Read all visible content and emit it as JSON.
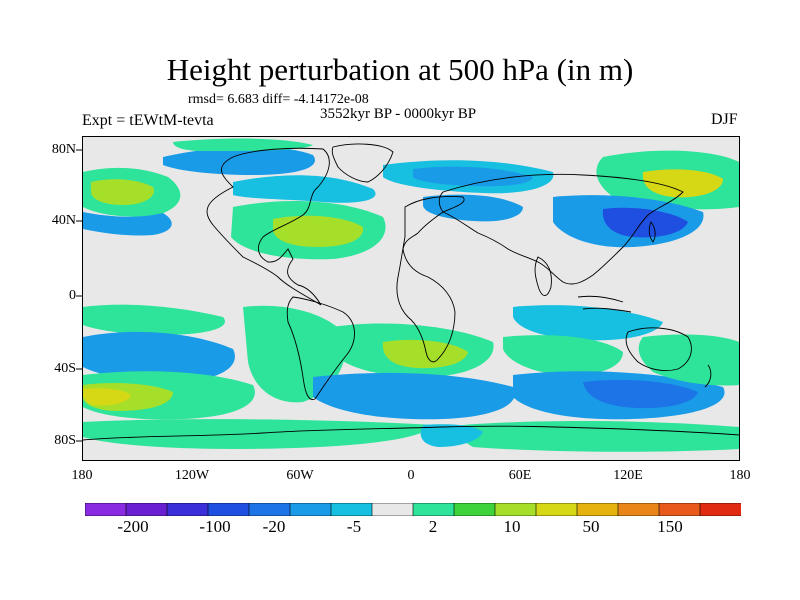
{
  "header": {
    "title": "Height perturbation at 500 hPa (in m)",
    "stats": "rmsd= 6.683 diff= -4.14172e-08",
    "period": "3552kyr BP - 0000kyr BP",
    "experiment": "Expt = tEWtM-tevta",
    "season": "DJF"
  },
  "map": {
    "y_ticks": [
      "80N",
      "40N",
      "0",
      "40S",
      "80S"
    ],
    "x_ticks": [
      "180",
      "120W",
      "60W",
      "0",
      "60E",
      "120E",
      "180"
    ],
    "projection": "cylindrical equidistant",
    "coastlines": true
  },
  "colorbar": {
    "colors": [
      "#8a2be2",
      "#6a1fd0",
      "#3a2fd8",
      "#1f4fe0",
      "#1c74e6",
      "#1a9be8",
      "#17bfe0",
      "#e8e8e8",
      "#2ee39a",
      "#3ed33a",
      "#a6df2a",
      "#d6d816",
      "#e6b20e",
      "#e8861a",
      "#e85a1c",
      "#e02a12"
    ],
    "labels": [
      "-200",
      "-100",
      "-20",
      "-5",
      "2",
      "10",
      "50",
      "150"
    ]
  },
  "fields": {
    "neutral": "#e8e8e8",
    "light_blue": "#17bfe0",
    "mid_blue": "#1a9be8",
    "blue": "#1c74e6",
    "dark_blue": "#1f4fe0",
    "green": "#2ee39a",
    "bright_green": "#3ed33a",
    "yellow_green": "#a6df2a",
    "yellow": "#d6d816"
  }
}
